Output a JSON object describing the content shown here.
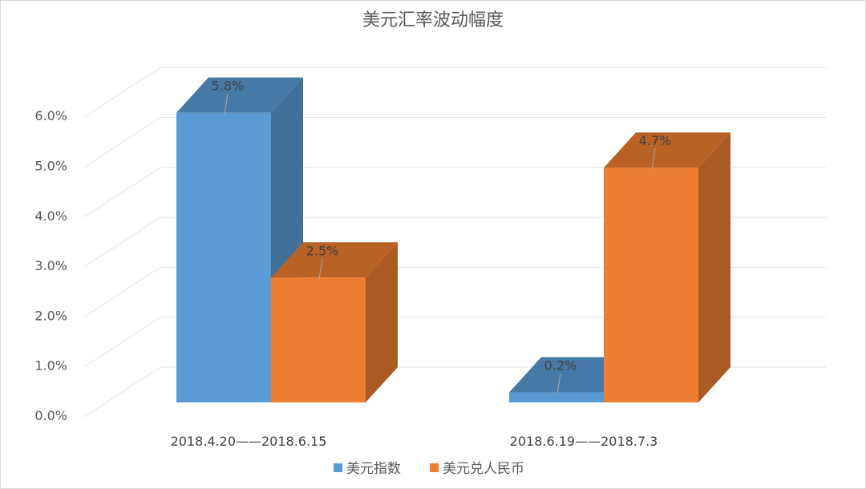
{
  "chart_data": {
    "type": "bar",
    "title": "美元汇率波动幅度",
    "categories": [
      "2018.4.20——2018.6.15",
      "2018.6.19——2018.7.3"
    ],
    "series": [
      {
        "name": "美元指数",
        "values": [
          5.8,
          0.2
        ],
        "labels": [
          "5.8%",
          "0.2%"
        ],
        "color": "#5b9bd5"
      },
      {
        "name": "美元兑人民币",
        "values": [
          2.5,
          4.7
        ],
        "labels": [
          "2.5%",
          "4.7%"
        ],
        "color": "#ed7d31"
      }
    ],
    "yticks": [
      "0.0%",
      "1.0%",
      "2.0%",
      "3.0%",
      "4.0%",
      "5.0%",
      "6.0%"
    ],
    "ylim": [
      0,
      6
    ],
    "grid": true,
    "three_d": true,
    "legend_position": "bottom"
  }
}
